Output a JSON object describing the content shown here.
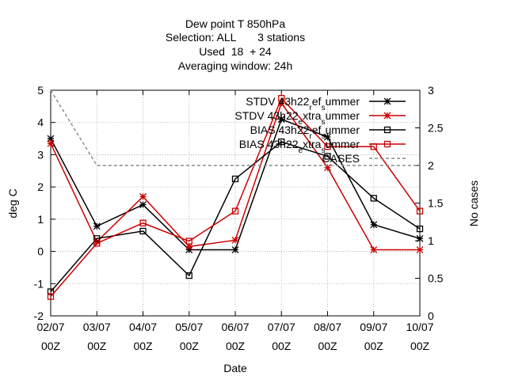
{
  "chart_data": {
    "type": "line",
    "title_lines": [
      "Dew point T 850hPa",
      "Selection: ALL       3 stations",
      "Used  18  + 24",
      "Averaging window: 24h"
    ],
    "xlabel": "Date",
    "ylabel": "deg C",
    "y2label": "No cases",
    "categories": [
      "02/07 00Z",
      "03/07 00Z",
      "04/07 00Z",
      "05/07 00Z",
      "06/07 00Z",
      "07/07 00Z",
      "08/07 00Z",
      "09/07 00Z",
      "10/07 00Z"
    ],
    "x_tick_top": [
      "02/07",
      "03/07",
      "04/07",
      "05/07",
      "06/07",
      "07/07",
      "08/07",
      "09/07",
      "10/07"
    ],
    "x_tick_bottom": [
      "00Z",
      "00Z",
      "00Z",
      "00Z",
      "00Z",
      "00Z",
      "00Z",
      "00Z",
      "00Z"
    ],
    "ylim": [
      -2,
      5
    ],
    "yticks": [
      -2,
      -1,
      0,
      1,
      2,
      3,
      4,
      5
    ],
    "y2lim": [
      0,
      3
    ],
    "y2ticks": [
      "0",
      "0.5",
      "1",
      "1.5",
      "2",
      "2.5",
      "3"
    ],
    "grid": true,
    "legend_position": "top-right",
    "series": [
      {
        "name": "STDV 43h22_ref_summer",
        "label_parts": [
          "STDV 43h22",
          "r",
          "ef",
          "s",
          "ummer"
        ],
        "color": "#000000",
        "marker": "star",
        "axis": "y1",
        "values": [
          3.5,
          0.78,
          1.45,
          0.05,
          0.05,
          4.1,
          3.55,
          0.83,
          0.4
        ]
      },
      {
        "name": "STDV 43h22_extra_summer",
        "label_parts": [
          "STDV 43h22",
          "e",
          "xtra",
          "s",
          "ummer"
        ],
        "color": "#cc0000",
        "marker": "star",
        "axis": "y1",
        "values": [
          3.35,
          0.3,
          1.7,
          0.15,
          0.35,
          4.6,
          2.6,
          0.05,
          0.05
        ]
      },
      {
        "name": "BIAS 43h22_ref_summer",
        "label_parts": [
          "BIAS 43h22",
          "r",
          "ef",
          "s",
          "ummer"
        ],
        "color": "#000000",
        "marker": "square",
        "axis": "y1",
        "values": [
          -1.25,
          0.4,
          0.63,
          -0.75,
          2.25,
          3.4,
          2.95,
          1.65,
          0.7
        ]
      },
      {
        "name": "BIAS 43h22_extra_summer",
        "label_parts": [
          "BIAS 43h22",
          "e",
          "xtra",
          "s",
          "ummer"
        ],
        "color": "#cc0000",
        "marker": "square",
        "axis": "y1",
        "values": [
          -1.4,
          0.25,
          0.88,
          0.32,
          1.25,
          4.75,
          3.25,
          3.25,
          1.25
        ]
      },
      {
        "name": "CASES",
        "label_parts": [
          "CASES"
        ],
        "color": "#888888",
        "marker": "none",
        "dash": true,
        "axis": "y2",
        "values": [
          3,
          2,
          2,
          2,
          2,
          2,
          2,
          2,
          2
        ]
      }
    ]
  }
}
